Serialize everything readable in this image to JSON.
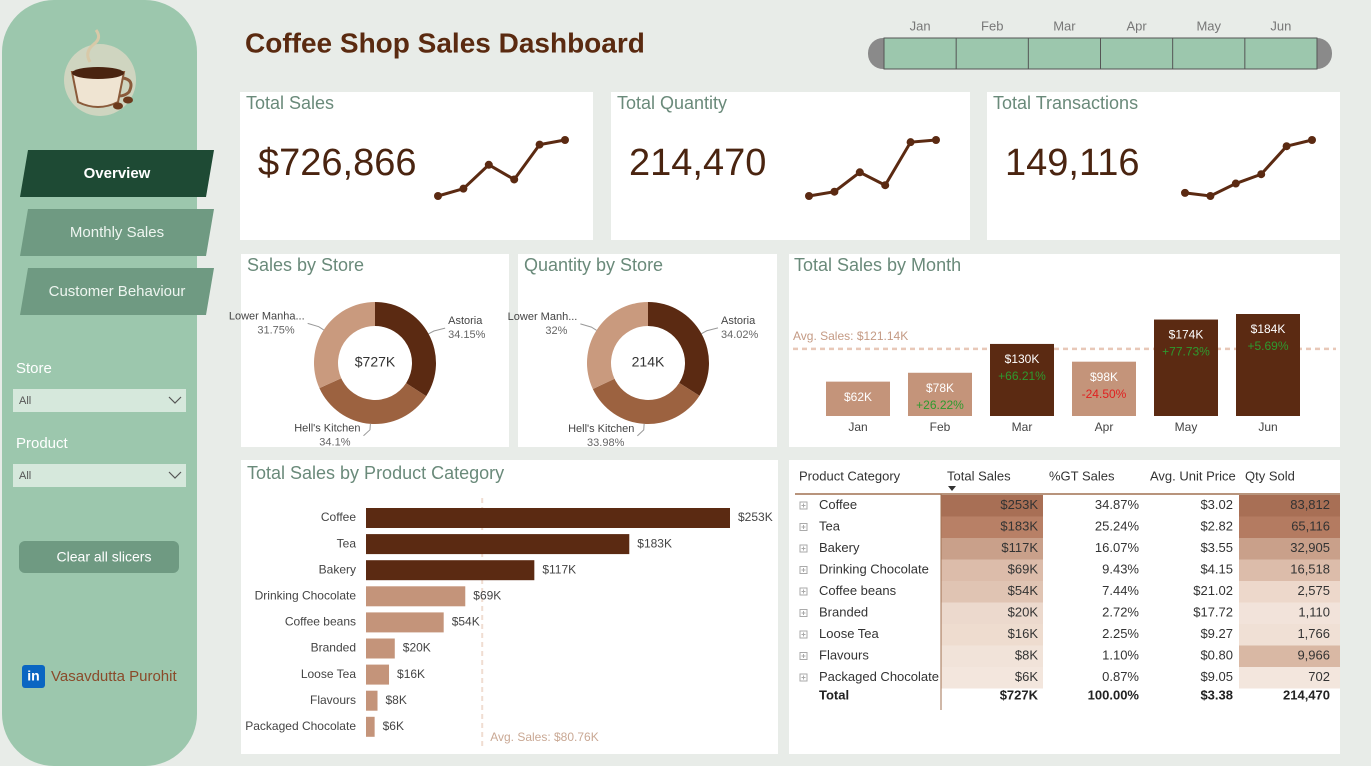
{
  "sidebar": {
    "nav": [
      "Overview",
      "Monthly Sales",
      "Customer Behaviour"
    ],
    "filters": [
      {
        "label": "Store",
        "value": "All"
      },
      {
        "label": "Product",
        "value": "All"
      }
    ],
    "clear_button": "Clear all slicers",
    "author": "Vasavdutta Purohit"
  },
  "header": {
    "title": "Coffee Shop Sales Dashboard",
    "months": [
      "Jan",
      "Feb",
      "Mar",
      "Apr",
      "May",
      "Jun"
    ]
  },
  "kpis": [
    {
      "title": "Total Sales",
      "value": "$726,866"
    },
    {
      "title": "Total Quantity",
      "value": "214,470"
    },
    {
      "title": "Total Transactions",
      "value": "149,116"
    }
  ],
  "chart_data": [
    {
      "type": "sparkline",
      "values": [
        62,
        78,
        130,
        98,
        174,
        184
      ],
      "color": "#5b2a12"
    },
    {
      "type": "sparkline",
      "values": [
        25,
        27,
        36,
        30,
        50,
        51
      ],
      "color": "#5b2a12"
    },
    {
      "type": "sparkline",
      "values": [
        18,
        17,
        21,
        24,
        33,
        35
      ],
      "color": "#5b2a12"
    },
    {
      "type": "donut",
      "title": "Sales by Store",
      "categories": [
        "Astoria",
        "Hell's Kitchen",
        "Lower Manha..."
      ],
      "values": [
        34.15,
        34.1,
        31.75
      ],
      "value_labels": [
        "34.15%",
        "34.1%",
        "31.75%"
      ],
      "colors": [
        "#5b2a12",
        "#9c6240",
        "#c99a7e"
      ],
      "center_label": "$727K"
    },
    {
      "type": "donut",
      "title": "Quantity by Store",
      "categories": [
        "Astoria",
        "Hell's Kitchen",
        "Lower Manh..."
      ],
      "values": [
        34.02,
        33.98,
        32
      ],
      "value_labels": [
        "34.02%",
        "33.98%",
        "32%"
      ],
      "colors": [
        "#5b2a12",
        "#9c6240",
        "#c99a7e"
      ],
      "center_label": "214K"
    },
    {
      "type": "bar",
      "title": "Total Sales by Month",
      "categories": [
        "Jan",
        "Feb",
        "Mar",
        "Apr",
        "May",
        "Jun"
      ],
      "values": [
        62,
        78,
        130,
        98,
        174,
        184
      ],
      "value_labels": [
        "$62K",
        "$78K",
        "$130K",
        "$98K",
        "$174K",
        "$184K"
      ],
      "changes": [
        null,
        26.22,
        66.21,
        -24.5,
        77.73,
        5.69
      ],
      "change_labels": [
        null,
        "+26.22%",
        "+66.21%",
        "-24.50%",
        "+77.73%",
        "+5.69%"
      ],
      "average": 121.14,
      "average_label": "Avg. Sales: $121.14K",
      "color_above": "#5b2a12",
      "color_below": "#c4947a",
      "positive_color": "#2e9a2e",
      "negative_color": "#e02020"
    },
    {
      "type": "hbar",
      "title": "Total Sales by Product Category",
      "categories": [
        "Coffee",
        "Tea",
        "Bakery",
        "Drinking Chocolate",
        "Coffee beans",
        "Branded",
        "Loose Tea",
        "Flavours",
        "Packaged Chocolate"
      ],
      "values": [
        253,
        183,
        117,
        69,
        54,
        20,
        16,
        8,
        6
      ],
      "value_labels": [
        "$253K",
        "$183K",
        "$117K",
        "$69K",
        "$54K",
        "$20K",
        "$16K",
        "$8K",
        "$6K"
      ],
      "average": 80.76,
      "average_label": "Avg. Sales: $80.76K",
      "color_above": "#5b2a12",
      "color_below": "#c4947a"
    }
  ],
  "table": {
    "columns": [
      "Product Category",
      "Total Sales",
      "%GT Sales",
      "Avg. Unit Price",
      "Qty Sold"
    ],
    "rows": [
      [
        "Coffee",
        "$253K",
        "34.87%",
        "$3.02",
        "83,812"
      ],
      [
        "Tea",
        "$183K",
        "25.24%",
        "$2.82",
        "65,116"
      ],
      [
        "Bakery",
        "$117K",
        "16.07%",
        "$3.55",
        "32,905"
      ],
      [
        "Drinking Chocolate",
        "$69K",
        "9.43%",
        "$4.15",
        "16,518"
      ],
      [
        "Coffee beans",
        "$54K",
        "7.44%",
        "$21.02",
        "2,575"
      ],
      [
        "Branded",
        "$20K",
        "2.72%",
        "$17.72",
        "1,110"
      ],
      [
        "Loose Tea",
        "$16K",
        "2.25%",
        "$9.27",
        "1,766"
      ],
      [
        "Flavours",
        "$8K",
        "1.10%",
        "$0.80",
        "9,966"
      ],
      [
        "Packaged Chocolate",
        "$6K",
        "0.87%",
        "$9.05",
        "702"
      ]
    ],
    "total": [
      "Total",
      "$727K",
      "100.00%",
      "$3.38",
      "214,470"
    ],
    "sales_colors": [
      "#a86f55",
      "#b88066",
      "#c9a08a",
      "#dcbcaa",
      "#e0c4b3",
      "#ecd9cd",
      "#eedccf",
      "#f1e3d9",
      "#f3e6dd"
    ],
    "qty_colors": [
      "#a86f55",
      "#b47b61",
      "#c9a08a",
      "#dcbcaa",
      "#edd8cb",
      "#f2e3da",
      "#f0e0d5",
      "#d9b8a4",
      "#f3e6dd"
    ]
  }
}
